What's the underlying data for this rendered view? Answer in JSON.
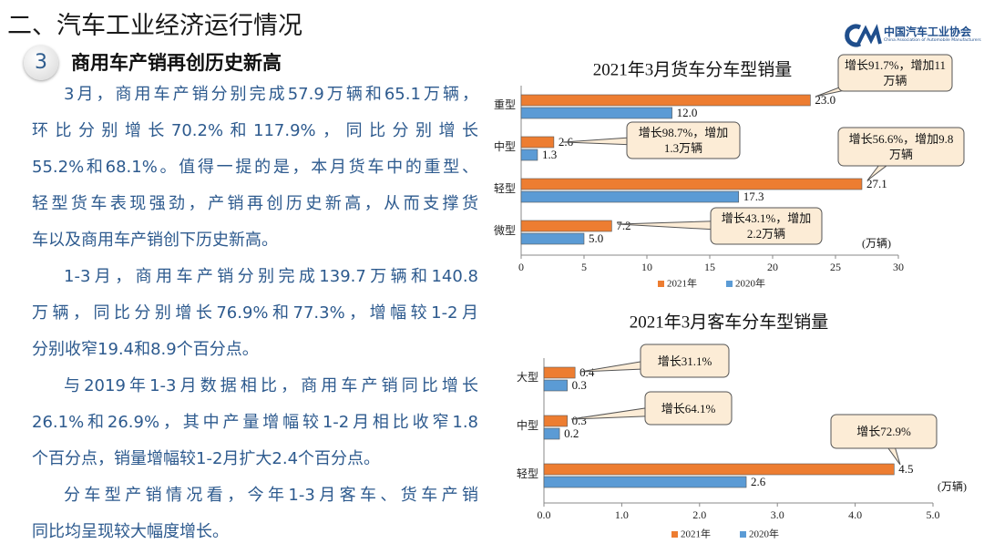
{
  "header": {
    "title": "二、汽车工业经济运行情况",
    "logo_cn": "中国汽车工业协会",
    "logo_en": "China Association of Automobile Manufacturers"
  },
  "section": {
    "number": "3",
    "title": "商用车产销再创历史新高"
  },
  "paragraphs": [
    [
      "3月，商用车产销分别完成57.9万辆和65.1万辆，",
      "环比分别增长70.2%和117.9%，同比分别增长",
      "55.2%和68.1%。值得一提的是，本月货车中的重型、",
      "轻型货车表现强劲，产销再创历史新高，从而支撑货",
      "车以及商用车产销创下历史新高。"
    ],
    [
      "1-3月，商用车产销分别完成139.7万辆和140.8",
      "万辆，同比分别增长76.9%和77.3%，增幅较1-2月",
      "分别收窄19.4和8.9个百分点。"
    ],
    [
      "与2019年1-3月数据相比，商用车产销同比增长",
      "26.1%和26.9%，其中产量增幅较1-2月相比收窄1.8",
      "个百分点，销量增幅较1-2月扩大2.4个百分点。"
    ],
    [
      "分车型产销情况看，今年1-3月客车、货车产销",
      "同比均呈现较大幅度增长。"
    ]
  ],
  "chart_data": [
    {
      "type": "hbar",
      "title": "2021年3月货车分车型销量",
      "unit": "(万辆)",
      "categories": [
        "重型",
        "中型",
        "轻型",
        "微型"
      ],
      "series": [
        {
          "name": "2021年",
          "color": "#ed7d31",
          "values": [
            23.0,
            2.6,
            27.1,
            7.2
          ],
          "value_labels": [
            "23.0",
            "2.6",
            "27.1",
            "7.2"
          ]
        },
        {
          "name": "2020年",
          "color": "#5b9bd5",
          "values": [
            12.0,
            1.3,
            17.3,
            5.0
          ],
          "value_labels": [
            "12.0",
            "1.3",
            "17.3",
            "5.0"
          ]
        }
      ],
      "xlim": [
        0,
        30
      ],
      "xticks": [
        0,
        5,
        10,
        15,
        20,
        25,
        30
      ],
      "annotations": [
        "增长91.7%，增加11万辆",
        "增长98.7%，增加1.3万辆",
        "增长56.6%，增加9.8万辆",
        "增长43.1%，增加2.2万辆"
      ],
      "legend": "bottom"
    },
    {
      "type": "hbar",
      "title": "2021年3月客车分车型销量",
      "unit": "(万辆)",
      "categories": [
        "大型",
        "中型",
        "轻型"
      ],
      "series": [
        {
          "name": "2021年",
          "color": "#ed7d31",
          "values": [
            0.4,
            0.3,
            4.5
          ]
        },
        {
          "name": "2020年",
          "color": "#5b9bd5",
          "values": [
            0.3,
            0.2,
            2.6
          ]
        }
      ],
      "xlim": [
        0,
        5
      ],
      "xticks": [
        {
          "value": 0,
          "label": "0.0"
        },
        {
          "value": 1,
          "label": "1.0"
        },
        {
          "value": 2,
          "label": "2.0"
        },
        {
          "value": 3,
          "label": "3.0"
        },
        {
          "value": 4,
          "label": "4.0"
        },
        {
          "value": 5,
          "label": "5.0"
        }
      ],
      "annotations": [
        "增长31.1%",
        "增长64.1%",
        "增长72.9%"
      ],
      "legend": "bottom"
    }
  ]
}
